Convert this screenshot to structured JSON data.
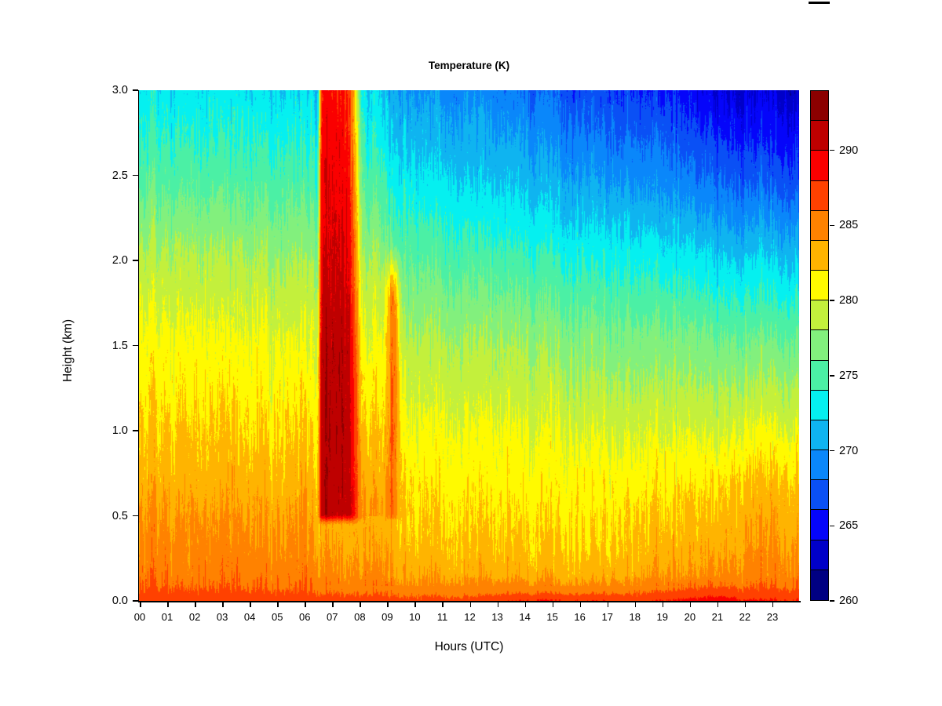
{
  "chart_data": {
    "type": "heatmap",
    "title": "Temperature (K)",
    "xlabel": "Hours (UTC)",
    "ylabel": "Height (km)",
    "xlim": [
      0,
      24
    ],
    "ylim": [
      0,
      3
    ],
    "x_tick_labels": [
      "00",
      "01",
      "02",
      "03",
      "04",
      "05",
      "06",
      "07",
      "08",
      "09",
      "10",
      "11",
      "12",
      "13",
      "14",
      "15",
      "16",
      "17",
      "18",
      "19",
      "20",
      "21",
      "22",
      "23"
    ],
    "y_tick_values": [
      0.0,
      0.5,
      1.0,
      1.5,
      2.0,
      2.5,
      3.0
    ],
    "y_tick_labels": [
      "0.0",
      "0.5",
      "1.0",
      "1.5",
      "2.0",
      "2.5",
      "3.0"
    ],
    "grid": false,
    "legend_position": "right-colorbar",
    "colorbar": {
      "min": 260,
      "max": 294,
      "step": 2,
      "tick_values": [
        260,
        265,
        270,
        275,
        280,
        285,
        290
      ],
      "tick_labels": [
        "260",
        "265",
        "270",
        "275",
        "280",
        "285",
        "290"
      ],
      "colors_low_to_high": [
        "#000082",
        "#0000C8",
        "#0505FA",
        "#0A50F5",
        "#0A87FA",
        "#0FB4F0",
        "#05F0F0",
        "#4BF0A5",
        "#82F07D",
        "#C3F03C",
        "#FFFA00",
        "#FFB400",
        "#FF8200",
        "#FF4100",
        "#FA0000",
        "#BE0000",
        "#8B0000"
      ]
    },
    "field": {
      "description": "Background temperature (K) control grid, bilinearly interpolated over hour (UTC) and height (km).",
      "hours": [
        0,
        2,
        4,
        6,
        7,
        8,
        10,
        12,
        14,
        16,
        18,
        20,
        21,
        22,
        24
      ],
      "heights_km": [
        0.0,
        0.05,
        0.15,
        0.3,
        0.5,
        0.75,
        1.0,
        1.5,
        2.0,
        2.5,
        3.0
      ],
      "temps_K": [
        [
          287.5,
          287.3,
          287.2,
          287.2,
          287.0,
          287.0,
          286.8,
          286.8,
          288.2,
          288.2,
          287.6,
          288.6,
          289.6,
          288.4,
          288.0
        ],
        [
          286.5,
          286.4,
          286.3,
          286.2,
          286.0,
          285.8,
          285.6,
          285.4,
          285.8,
          285.8,
          285.8,
          286.6,
          287.0,
          286.6,
          286.4
        ],
        [
          285.5,
          285.4,
          285.3,
          285.0,
          284.8,
          284.4,
          284.0,
          283.6,
          283.4,
          283.4,
          283.6,
          284.2,
          284.6,
          284.8,
          284.6
        ],
        [
          285.0,
          285.0,
          284.8,
          284.4,
          284.0,
          283.6,
          283.0,
          282.6,
          282.4,
          282.4,
          282.6,
          283.2,
          283.6,
          284.2,
          284.0
        ],
        [
          284.2,
          284.2,
          284.0,
          283.6,
          283.2,
          283.0,
          282.4,
          282.0,
          281.8,
          281.8,
          282.0,
          282.4,
          282.8,
          283.4,
          283.2
        ],
        [
          283.2,
          283.0,
          283.0,
          282.6,
          282.2,
          282.0,
          281.6,
          281.2,
          281.0,
          281.0,
          281.0,
          281.4,
          281.6,
          282.2,
          282.0
        ],
        [
          282.5,
          282.3,
          282.0,
          281.8,
          281.4,
          281.0,
          280.8,
          280.4,
          280.2,
          280.0,
          279.8,
          279.8,
          279.8,
          280.2,
          280.0
        ],
        [
          281.0,
          280.8,
          280.5,
          280.2,
          279.8,
          279.2,
          278.8,
          278.2,
          277.8,
          277.4,
          277.0,
          276.8,
          276.6,
          276.4,
          276.2
        ],
        [
          278.8,
          278.5,
          278.2,
          277.8,
          277.2,
          276.8,
          276.0,
          275.2,
          274.6,
          274.0,
          273.4,
          272.8,
          272.4,
          272.0,
          271.6
        ],
        [
          275.5,
          275.2,
          275.0,
          274.6,
          274.0,
          273.6,
          272.8,
          271.8,
          271.0,
          270.2,
          269.4,
          268.4,
          267.8,
          267.2,
          266.6
        ],
        [
          273.0,
          272.8,
          272.5,
          272.0,
          271.5,
          271.0,
          270.2,
          269.2,
          268.2,
          267.2,
          266.2,
          265.0,
          264.2,
          263.6,
          263.0
        ]
      ]
    },
    "anomalies": [
      {
        "type": "warm-plume",
        "hour_start": 6.45,
        "hour_full_start": 6.65,
        "hour_full_end": 7.5,
        "hour_end": 8.3,
        "z_base_km": 0.44,
        "z_ramp_km": 0.08,
        "t_core_K": 291.4,
        "z_fade_start_km": 1.45,
        "fade_K_per_km": 1.9
      },
      {
        "type": "warm-plume-gaussian",
        "hour_center": 9.22,
        "hour_sigma": 0.17,
        "z_base_km": 0.45,
        "z_ramp_km": 0.07,
        "t_core_K": 285.8,
        "z_fade_start_km": 1.25,
        "fade_K_per_km": 1.6,
        "z_top_fade_km": 1.75,
        "z_top_km": 2.15
      },
      {
        "type": "warm-bump",
        "hour_center": 8.55,
        "hour_sigma": 0.22,
        "amp_K": 1.4,
        "z_min_km": 0.5
      }
    ],
    "noise": {
      "column_striation_K": 1.6,
      "column_smooth_K": 1.1,
      "vertical_streak_K": 0.38,
      "vertical_persistence": 0.965,
      "near_surface_damping_below_km": 0.09,
      "top_amplification_above_km": 2.7,
      "seed": 1234
    }
  },
  "decorations": {
    "stray_mark_color": "#000000"
  }
}
